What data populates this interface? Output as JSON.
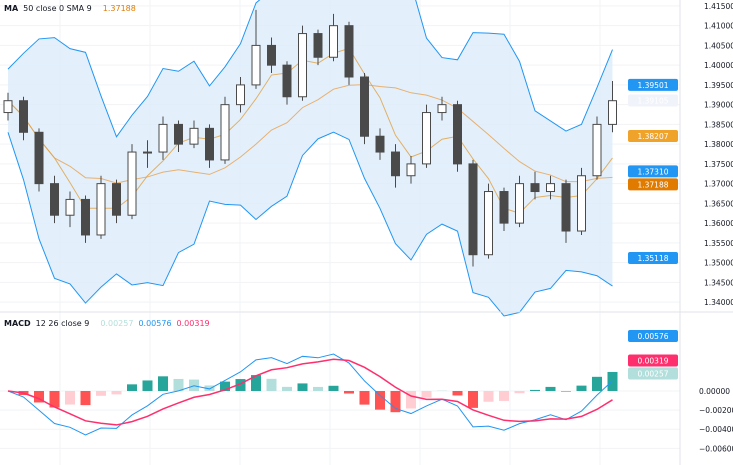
{
  "main_legend": {
    "name": "MA",
    "params": "50 close 0 SMA 9",
    "value": "1.37188"
  },
  "macd_legend": {
    "name": "MACD",
    "params": "12 26 close 9",
    "hist": "0.00257",
    "macd": "0.00576",
    "signal": "0.00319"
  },
  "colors": {
    "up": "#26a69a",
    "down": "#ef5350",
    "candle": "#4a4a4a",
    "bb_fill": "#dcecfb",
    "bb_line": "#2196f3",
    "sma": "#e0a040",
    "ma": "#e8b070",
    "macd": "#2196f3",
    "signal": "#ff2f6d",
    "hist_up": "#26a69a",
    "hist_up_light": "#b2dfdb",
    "hist_down": "#ff5252",
    "hist_down_light": "#ffcdd2"
  },
  "chart_data": [
    {
      "type": "candlestick",
      "title": "",
      "ylim": [
        1.338,
        1.4165
      ],
      "y_ticks": [
        "1.41500",
        "1.41000",
        "1.40500",
        "1.40000",
        "1.39500",
        "1.39000",
        "1.38500",
        "1.38000",
        "1.37500",
        "1.37000",
        "1.36500",
        "1.36000",
        "1.35500",
        "1.35000",
        "1.34500",
        "1.34000"
      ],
      "ohlc": [
        [
          1.388,
          1.393,
          1.386,
          1.391
        ],
        [
          1.391,
          1.392,
          1.381,
          1.383
        ],
        [
          1.383,
          1.384,
          1.368,
          1.37
        ],
        [
          1.37,
          1.372,
          1.36,
          1.362
        ],
        [
          1.362,
          1.368,
          1.359,
          1.366
        ],
        [
          1.366,
          1.367,
          1.355,
          1.357
        ],
        [
          1.357,
          1.372,
          1.356,
          1.37
        ],
        [
          1.37,
          1.371,
          1.36,
          1.362
        ],
        [
          1.362,
          1.38,
          1.361,
          1.378
        ],
        [
          1.378,
          1.381,
          1.374,
          1.378
        ],
        [
          1.378,
          1.387,
          1.376,
          1.385
        ],
        [
          1.385,
          1.386,
          1.378,
          1.38
        ],
        [
          1.38,
          1.386,
          1.379,
          1.384
        ],
        [
          1.384,
          1.385,
          1.374,
          1.376
        ],
        [
          1.376,
          1.392,
          1.375,
          1.39
        ],
        [
          1.39,
          1.397,
          1.388,
          1.395
        ],
        [
          1.395,
          1.414,
          1.394,
          1.405
        ],
        [
          1.405,
          1.407,
          1.398,
          1.4
        ],
        [
          1.4,
          1.401,
          1.39,
          1.392
        ],
        [
          1.392,
          1.41,
          1.391,
          1.408
        ],
        [
          1.408,
          1.409,
          1.4,
          1.402
        ],
        [
          1.402,
          1.413,
          1.401,
          1.41
        ],
        [
          1.41,
          1.411,
          1.395,
          1.397
        ],
        [
          1.397,
          1.398,
          1.38,
          1.382
        ],
        [
          1.382,
          1.384,
          1.376,
          1.378
        ],
        [
          1.378,
          1.38,
          1.369,
          1.372
        ],
        [
          1.372,
          1.377,
          1.37,
          1.375
        ],
        [
          1.375,
          1.39,
          1.374,
          1.388
        ],
        [
          1.388,
          1.392,
          1.386,
          1.39
        ],
        [
          1.39,
          1.391,
          1.373,
          1.375
        ],
        [
          1.375,
          1.376,
          1.349,
          1.352
        ],
        [
          1.352,
          1.37,
          1.351,
          1.368
        ],
        [
          1.368,
          1.369,
          1.358,
          1.36
        ],
        [
          1.36,
          1.372,
          1.359,
          1.37
        ],
        [
          1.37,
          1.373,
          1.366,
          1.368
        ],
        [
          1.368,
          1.372,
          1.366,
          1.37
        ],
        [
          1.37,
          1.371,
          1.355,
          1.358
        ],
        [
          1.358,
          1.374,
          1.357,
          1.372
        ],
        [
          1.372,
          1.387,
          1.371,
          1.385
        ],
        [
          1.385,
          1.396,
          1.383,
          1.391
        ]
      ],
      "price_badges": [
        {
          "value": "1.39501",
          "color": "#2196f3"
        },
        {
          "value": "1.39105",
          "color": "#f0f3fa",
          "text_color": "#131722"
        },
        {
          "value": "1.38207",
          "color": "#f0a32a",
          "text_color": "#131722"
        },
        {
          "value": "1.37310",
          "color": "#2196f3"
        },
        {
          "value": "1.37188",
          "color": "#e07b00"
        },
        {
          "value": "1.35118",
          "color": "#2196f3"
        }
      ]
    },
    {
      "type": "macd",
      "ylim": [
        -0.0068,
        0.0068
      ],
      "y_ticks": [
        "0.00000",
        "−0.00200",
        "−0.00400",
        "−0.00600"
      ],
      "price_badges": [
        {
          "value": "0.00576",
          "color": "#2196f3"
        },
        {
          "value": "0.00319",
          "color": "#ff2f6d"
        },
        {
          "value": "0.00257",
          "color": "#b2dfdb",
          "text_color": "#131722"
        }
      ]
    }
  ]
}
